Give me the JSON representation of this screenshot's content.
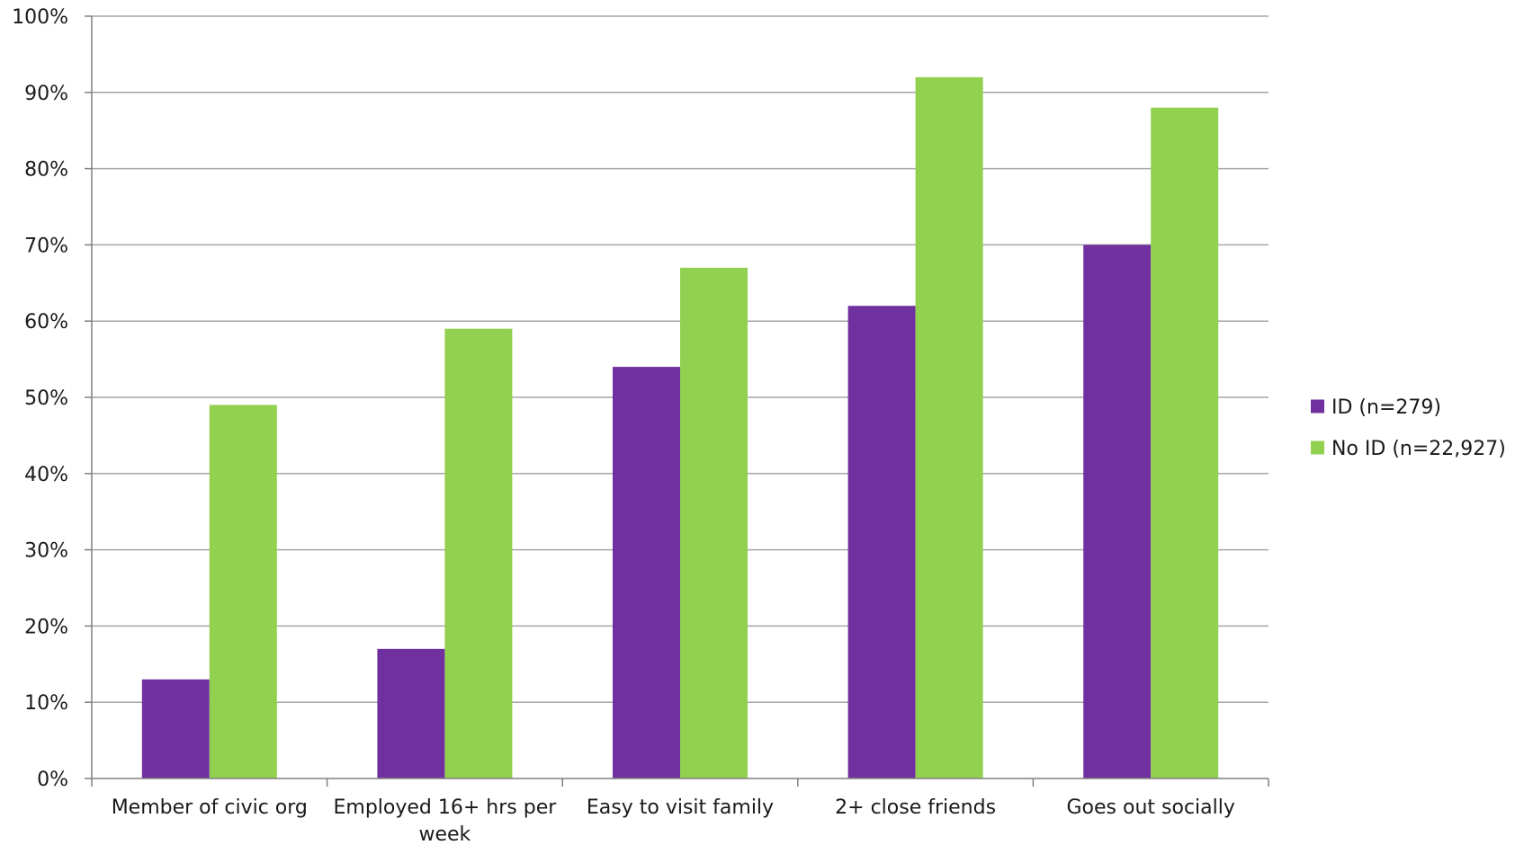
{
  "chart_data": {
    "type": "bar",
    "title": "",
    "xlabel": "",
    "ylabel": "",
    "ylim": [
      0,
      100
    ],
    "ytick_step": 10,
    "y_tick_suffix": "%",
    "grid": true,
    "legend_position": "right",
    "categories": [
      [
        "Member of civic org"
      ],
      [
        "Employed 16+ hrs per",
        "week"
      ],
      [
        "Easy to visit family"
      ],
      [
        "2+ close friends"
      ],
      [
        "Goes out socially"
      ]
    ],
    "series": [
      {
        "name": "ID (n=279)",
        "color": "#7030A0",
        "values": [
          13,
          17,
          54,
          62,
          70
        ]
      },
      {
        "name": "No ID (n=22,927)",
        "color": "#92D050",
        "values": [
          49,
          59,
          67,
          92,
          88
        ]
      }
    ],
    "colors": {
      "gridline": "#a6a6a6",
      "axis": "#808080",
      "text": "#1a1a1a"
    }
  }
}
